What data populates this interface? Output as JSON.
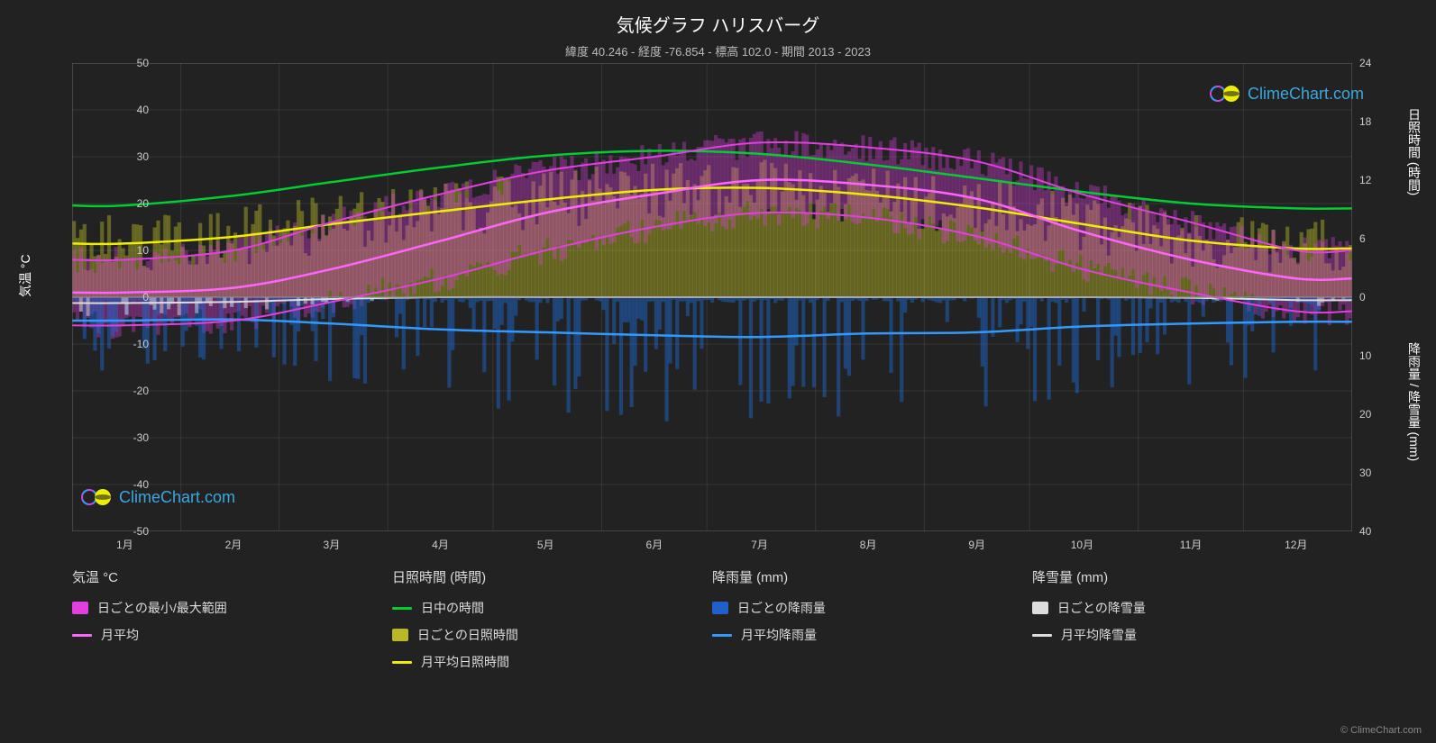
{
  "title": "気候グラフ ハリスバーグ",
  "subtitle": "緯度 40.246 - 経度 -76.854 - 標高 102.0 - 期間 2013 - 2023",
  "axis_left_label": "気温 °C",
  "axis_right_label_1": "日照時間 (時間)",
  "axis_right_label_2": "降雨量 / 降雪量 (mm)",
  "logo_text": "ClimeChart.com",
  "copyright": "© ClimeChart.com",
  "background_color": "#222222",
  "grid_color": "#444444",
  "plot_bg": "#222222",
  "chart": {
    "xlim": [
      0,
      365
    ],
    "ylim_left": [
      -50,
      50
    ],
    "right_top": {
      "min": 0,
      "max": 24,
      "ticks": [
        24,
        18,
        12,
        6,
        0
      ]
    },
    "right_bottom": {
      "min": 0,
      "max": 40,
      "ticks": [
        0,
        10,
        20,
        30,
        40
      ]
    },
    "ytick_left": [
      50,
      40,
      30,
      20,
      10,
      0,
      -10,
      -20,
      -30,
      -40,
      -50
    ],
    "months": [
      "1月",
      "2月",
      "3月",
      "4月",
      "5月",
      "6月",
      "7月",
      "8月",
      "9月",
      "10月",
      "11月",
      "12月"
    ],
    "month_days": [
      15,
      46,
      74,
      105,
      135,
      166,
      196,
      227,
      258,
      288,
      319,
      349
    ],
    "month_boundaries": [
      0,
      31,
      59,
      90,
      120,
      151,
      181,
      212,
      243,
      273,
      304,
      334,
      365
    ],
    "colors": {
      "temp_range": "#e040e0",
      "temp_range_fill": "rgba(224,64,224,0.35)",
      "temp_avg": "#ff66ff",
      "daylight": "#00cc33",
      "sunshine_daily": "rgba(200,200,40,0.4)",
      "sunshine_avg": "#eeee00",
      "rain_daily": "rgba(30,100,200,0.5)",
      "rain_avg": "#3399ff",
      "snow_daily": "rgba(220,220,220,0.5)",
      "snow_avg": "#dddddd"
    },
    "temp_avg_monthly": [
      1,
      2,
      6,
      12,
      18,
      22,
      25,
      24,
      21,
      14,
      8,
      4
    ],
    "temp_max_envelope": [
      8,
      10,
      16,
      22,
      27,
      30,
      33,
      32,
      29,
      22,
      16,
      10
    ],
    "temp_min_envelope": [
      -6,
      -5,
      -1,
      4,
      10,
      15,
      18,
      17,
      13,
      6,
      1,
      -3
    ],
    "daylight_hours": [
      9.4,
      10.4,
      11.8,
      13.3,
      14.5,
      15.0,
      14.7,
      13.6,
      12.2,
      10.8,
      9.6,
      9.1
    ],
    "sunshine_avg_hours": [
      5.5,
      6.2,
      7.5,
      8.8,
      10.0,
      11.0,
      11.2,
      10.5,
      9.2,
      7.5,
      5.8,
      5.0
    ],
    "rain_avg_mm": [
      4.0,
      3.8,
      4.5,
      5.5,
      6.0,
      6.5,
      6.8,
      6.2,
      6.0,
      5.0,
      4.5,
      4.2
    ],
    "snow_avg_mm": [
      1.0,
      0.8,
      0.3,
      0.0,
      0.0,
      0.0,
      0.0,
      0.0,
      0.0,
      0.0,
      0.1,
      0.5
    ]
  },
  "legend": {
    "cols": [
      {
        "header": "気温 °C",
        "items": [
          {
            "type": "swatch",
            "color": "#e040e0",
            "label": "日ごとの最小/最大範囲"
          },
          {
            "type": "line",
            "color": "#ff66ff",
            "label": "月平均"
          }
        ]
      },
      {
        "header": "日照時間 (時間)",
        "items": [
          {
            "type": "line",
            "color": "#00cc33",
            "label": "日中の時間"
          },
          {
            "type": "swatch",
            "color": "#b8b828",
            "label": "日ごとの日照時間"
          },
          {
            "type": "line",
            "color": "#eeee00",
            "label": "月平均日照時間"
          }
        ]
      },
      {
        "header": "降雨量 (mm)",
        "items": [
          {
            "type": "swatch",
            "color": "#2060c8",
            "label": "日ごとの降雨量"
          },
          {
            "type": "line",
            "color": "#3399ff",
            "label": "月平均降雨量"
          }
        ]
      },
      {
        "header": "降雪量 (mm)",
        "items": [
          {
            "type": "swatch",
            "color": "#dddddd",
            "label": "日ごとの降雪量"
          },
          {
            "type": "line",
            "color": "#dddddd",
            "label": "月平均降雪量"
          }
        ]
      }
    ]
  }
}
